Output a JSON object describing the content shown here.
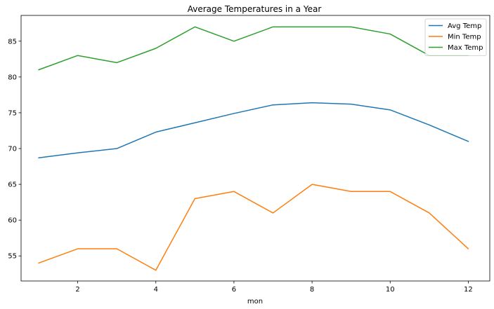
{
  "chart_data": {
    "type": "line",
    "title": "Average Temperatures in a Year",
    "xlabel": "mon",
    "ylabel": "",
    "x": [
      1,
      2,
      3,
      4,
      5,
      6,
      7,
      8,
      9,
      10,
      11,
      12
    ],
    "xlim": [
      0.55,
      12.55
    ],
    "ylim": [
      51.5,
      88.6
    ],
    "xticks": [
      2,
      4,
      6,
      8,
      10,
      12
    ],
    "yticks": [
      55,
      60,
      65,
      70,
      75,
      80,
      85
    ],
    "grid": false,
    "legend_position": "top-right",
    "series": [
      {
        "name": "Avg Temp",
        "color": "#1f77b4",
        "values": [
          68.7,
          69.4,
          70.0,
          72.3,
          73.6,
          74.9,
          76.1,
          76.4,
          76.2,
          75.4,
          73.3,
          71.0
        ]
      },
      {
        "name": "Min Temp",
        "color": "#ff7f0e",
        "values": [
          54,
          56,
          56,
          53,
          63,
          64,
          61,
          65,
          64,
          64,
          61,
          56
        ]
      },
      {
        "name": "Max Temp",
        "color": "#2ca02c",
        "values": [
          81,
          83,
          82,
          84,
          87,
          85,
          87,
          87,
          87,
          86,
          83,
          83
        ]
      }
    ]
  }
}
